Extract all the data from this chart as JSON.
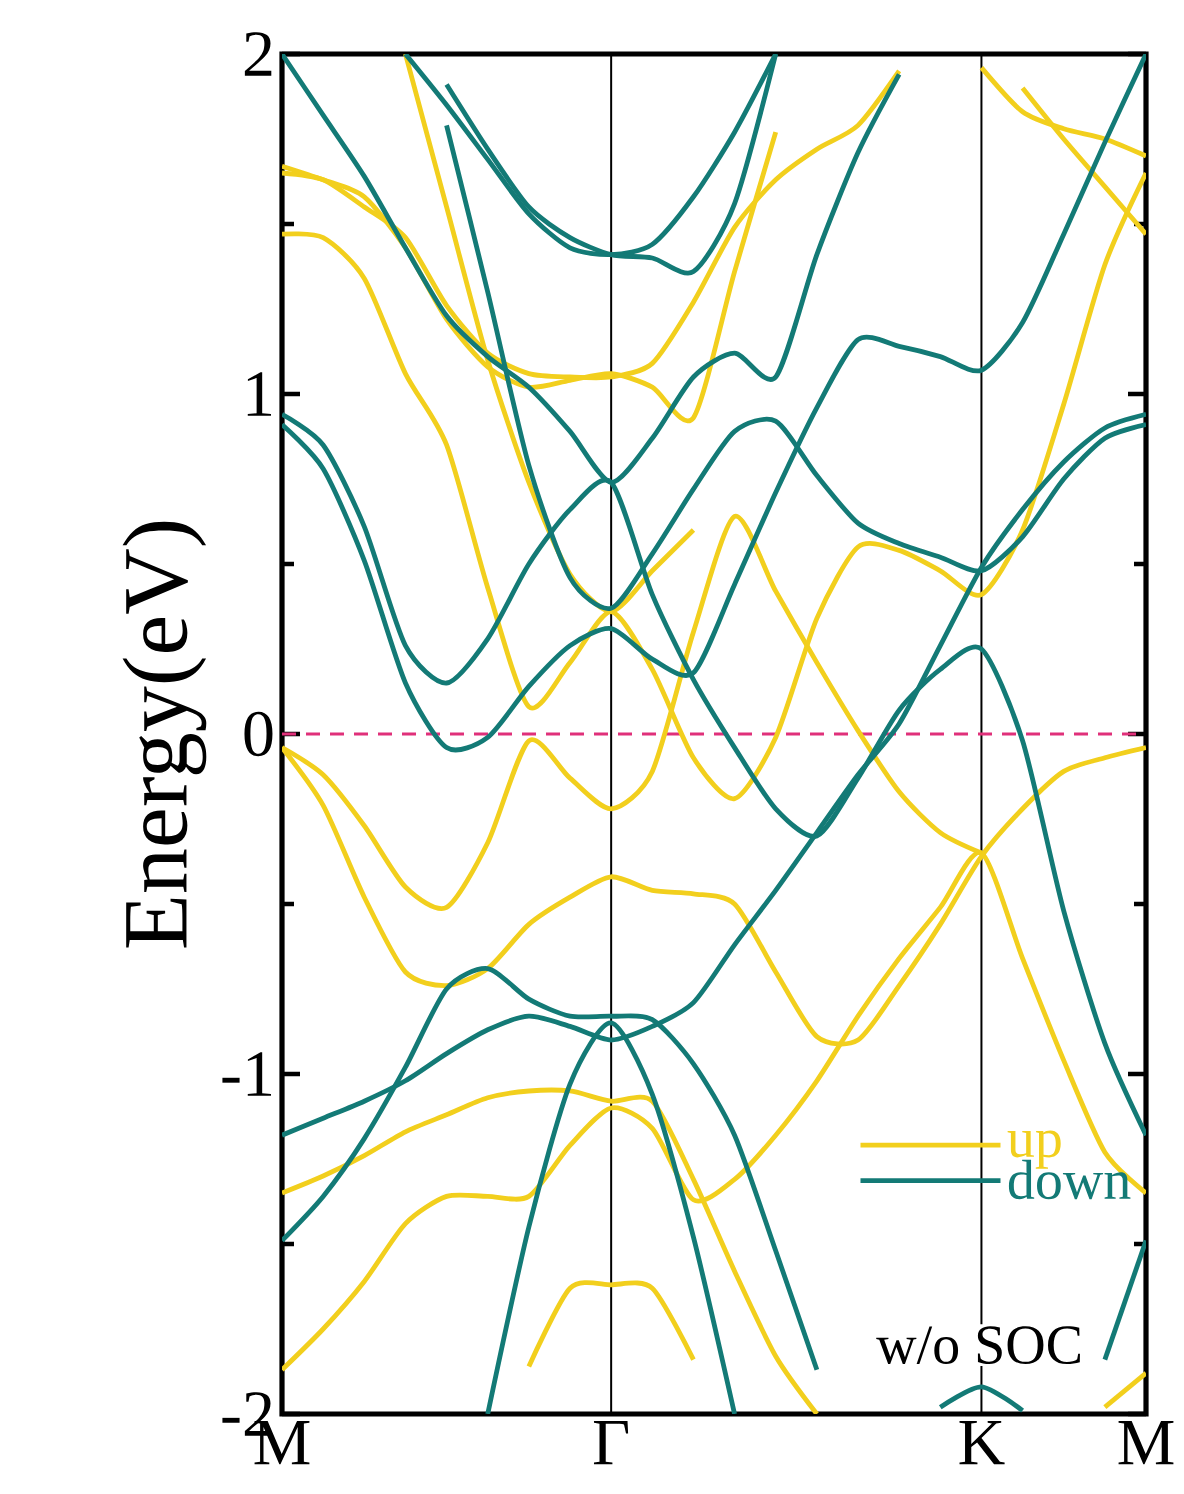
{
  "chart_data": {
    "type": "line",
    "ylabel": "Energy(eV)",
    "categories": [
      "M",
      null,
      null,
      null,
      null,
      null,
      null,
      null,
      "Γ",
      null,
      null,
      null,
      null,
      null,
      null,
      null,
      null,
      "K",
      null,
      null,
      null,
      "M"
    ],
    "ylim": [
      -2,
      2
    ],
    "yticks": [
      -2,
      -1,
      0,
      1,
      2
    ],
    "legend": "bottom right",
    "annotations": [
      "w/o SOC"
    ],
    "ref_lines": [
      {
        "axis": "x",
        "value": "Γ",
        "color": "#000000",
        "line_style": "solid"
      },
      {
        "axis": "x",
        "value": "K",
        "color": "#000000",
        "line_style": "solid"
      },
      {
        "axis": "y",
        "value": 0,
        "color": "#e0307a",
        "line_style": "dashed"
      }
    ],
    "series": [
      {
        "name": "up",
        "color": "#f2cf1d",
        "values": [
          -1.87,
          -1.75,
          -1.61,
          -1.44,
          -1.36,
          -1.36,
          -1.36,
          -1.21,
          -1.1,
          -1.16,
          -1.37,
          -1.31,
          -1.18,
          -1.02,
          -0.83,
          -0.66,
          -0.51,
          -0.35,
          -0.66,
          -0.96,
          -1.23,
          -1.35
        ]
      },
      {
        "color": "#f2cf1d",
        "values": [
          -1.35,
          -1.3,
          -1.24,
          -1.17,
          -1.12,
          -1.07,
          -1.05,
          -1.05,
          -1.08,
          -1.08,
          -1.31,
          -1.58,
          -1.83,
          -2.0,
          null,
          null,
          null,
          null,
          null,
          null,
          null,
          null
        ]
      },
      {
        "color": "#f2cf1d",
        "values": [
          -0.04,
          -0.21,
          -0.48,
          -0.7,
          -0.74,
          -0.69,
          -0.56,
          -0.48,
          -0.42,
          -0.46,
          -0.47,
          -0.5,
          -0.7,
          -0.89,
          -0.9,
          -0.74,
          -0.56,
          -0.36,
          -0.22,
          -0.11,
          -0.07,
          -0.04
        ]
      },
      {
        "color": "#f2cf1d",
        "values": [
          -0.04,
          -0.12,
          -0.27,
          -0.45,
          -0.51,
          -0.32,
          -0.02,
          -0.13,
          -0.22,
          -0.11,
          0.3,
          0.64,
          0.42,
          0.21,
          0.01,
          -0.17,
          -0.29,
          -0.35,
          null,
          null,
          null,
          null
        ]
      },
      {
        "color": "#f2cf1d",
        "values": [
          1.47,
          1.46,
          1.34,
          1.06,
          0.85,
          0.43,
          0.08,
          0.21,
          0.36,
          0.19,
          -0.07,
          -0.19,
          -0.01,
          0.34,
          0.55,
          0.54,
          0.48,
          0.41,
          0.6,
          0.97,
          1.38,
          1.65
        ]
      },
      {
        "color": "#f2cf1d",
        "values": [
          null,
          null,
          null,
          2.0,
          1.55,
          1.1,
          0.74,
          0.47,
          0.36,
          0.48,
          0.6,
          null,
          null,
          null,
          null,
          null,
          null,
          null,
          null,
          null,
          null,
          null
        ]
      },
      {
        "color": "#f2cf1d",
        "values": [
          1.65,
          1.63,
          1.55,
          1.46,
          1.26,
          1.12,
          1.06,
          1.05,
          1.05,
          1.09,
          1.27,
          1.49,
          1.63,
          1.72,
          1.79,
          1.95,
          null,
          null,
          null,
          null,
          null,
          null
        ]
      },
      {
        "color": "#f2cf1d",
        "values": [
          1.67,
          1.63,
          1.58,
          1.43,
          1.22,
          1.08,
          1.02,
          1.04,
          1.06,
          1.02,
          0.93,
          1.36,
          1.77,
          null,
          null,
          null,
          null,
          null,
          null,
          null,
          null,
          null
        ]
      },
      {
        "color": "#f2cf1d",
        "values": [
          null,
          null,
          null,
          null,
          null,
          null,
          null,
          null,
          null,
          null,
          null,
          null,
          null,
          null,
          null,
          null,
          null,
          1.96,
          1.83,
          1.78,
          1.75,
          1.7
        ]
      },
      {
        "color": "#f2cf1d",
        "values": [
          null,
          null,
          null,
          null,
          null,
          null,
          null,
          null,
          null,
          null,
          null,
          null,
          null,
          null,
          null,
          null,
          null,
          null,
          1.9,
          1.75,
          1.61,
          1.47
        ]
      },
      {
        "color": "#f2cf1d",
        "values": [
          null,
          null,
          null,
          null,
          null,
          null,
          -1.86,
          -1.63,
          -1.62,
          -1.63,
          -1.84,
          null,
          null,
          null,
          null,
          null,
          null,
          null,
          null,
          null,
          null,
          null
        ]
      },
      {
        "color": "#f2cf1d",
        "values": [
          null,
          null,
          null,
          null,
          null,
          null,
          null,
          null,
          null,
          null,
          null,
          null,
          null,
          null,
          null,
          null,
          null,
          null,
          null,
          null,
          -1.98,
          -1.88
        ]
      },
      {
        "name": "down",
        "color": "#137a76",
        "values": [
          2.0,
          1.82,
          1.64,
          1.43,
          1.23,
          1.11,
          1.02,
          0.89,
          0.74,
          0.87,
          1.05,
          1.12,
          1.05,
          1.41,
          1.71,
          1.94,
          null,
          null,
          null,
          null,
          null,
          null
        ]
      },
      {
        "color": "#137a76",
        "values": [
          null,
          null,
          null,
          null,
          1.79,
          1.3,
          0.79,
          0.46,
          0.37,
          0.53,
          0.72,
          0.89,
          0.92,
          0.76,
          0.62,
          0.56,
          0.52,
          0.48,
          0.58,
          0.75,
          0.87,
          0.91
        ]
      },
      {
        "color": "#137a76",
        "values": [
          0.94,
          0.85,
          0.61,
          0.26,
          0.15,
          0.28,
          0.5,
          0.66,
          0.74,
          0.41,
          0.16,
          -0.04,
          -0.22,
          -0.3,
          -0.13,
          0.07,
          0.19,
          0.25,
          -0.02,
          -0.52,
          -0.91,
          -1.18
        ]
      },
      {
        "color": "#137a76",
        "values": [
          0.91,
          0.78,
          0.51,
          0.15,
          -0.04,
          -0.01,
          0.14,
          0.26,
          0.31,
          0.22,
          0.18,
          0.44,
          0.71,
          0.96,
          1.16,
          1.14,
          1.11,
          1.07,
          1.21,
          1.47,
          1.74,
          2.0
        ]
      },
      {
        "color": "#137a76",
        "values": [
          null,
          null,
          null,
          2.0,
          1.85,
          1.69,
          1.53,
          1.43,
          1.41,
          1.44,
          1.58,
          1.77,
          2.0,
          null,
          null,
          null,
          null,
          null,
          null,
          null,
          null,
          null
        ]
      },
      {
        "color": "#137a76",
        "values": [
          null,
          null,
          null,
          null,
          1.91,
          1.72,
          1.55,
          1.46,
          1.41,
          1.4,
          1.36,
          1.56,
          2.0,
          null,
          null,
          null,
          null,
          null,
          null,
          null,
          null,
          null
        ]
      },
      {
        "color": "#137a76",
        "values": [
          -1.18,
          -1.13,
          -1.08,
          -1.02,
          -0.94,
          -0.87,
          -0.83,
          -0.86,
          -0.9,
          -0.86,
          -0.79,
          -0.62,
          -0.46,
          -0.29,
          -0.12,
          0.03,
          0.26,
          0.49,
          0.66,
          0.8,
          0.9,
          0.94
        ]
      },
      {
        "color": "#137a76",
        "values": [
          -1.49,
          -1.36,
          -1.19,
          -0.98,
          -0.75,
          -0.69,
          -0.78,
          -0.83,
          -0.83,
          -0.84,
          -0.97,
          -1.18,
          -1.52,
          -1.87,
          null,
          null,
          null,
          null,
          null,
          null,
          null,
          null
        ]
      },
      {
        "color": "#137a76",
        "values": [
          null,
          null,
          null,
          null,
          null,
          -2.0,
          -1.45,
          -1.03,
          -0.85,
          -1.06,
          -1.48,
          -2.0,
          null,
          null,
          null,
          null,
          null,
          null,
          null,
          null,
          null,
          null
        ]
      },
      {
        "color": "#137a76",
        "values": [
          null,
          null,
          null,
          null,
          null,
          null,
          null,
          null,
          null,
          null,
          null,
          null,
          null,
          null,
          null,
          null,
          -1.98,
          -1.92,
          -1.99,
          null,
          null,
          null
        ]
      },
      {
        "color": "#137a76",
        "values": [
          null,
          null,
          null,
          null,
          null,
          null,
          null,
          null,
          null,
          null,
          null,
          null,
          null,
          null,
          null,
          null,
          null,
          null,
          null,
          null,
          -1.84,
          -1.49
        ]
      }
    ]
  }
}
